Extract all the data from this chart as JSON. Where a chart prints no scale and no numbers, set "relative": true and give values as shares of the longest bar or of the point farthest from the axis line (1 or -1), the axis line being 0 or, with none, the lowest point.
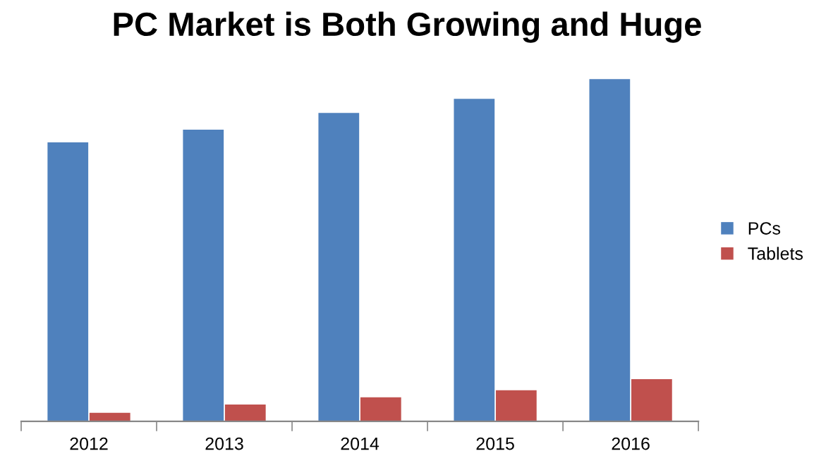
{
  "chart_data": {
    "type": "bar",
    "title": "PC Market is Both Growing and Huge",
    "relative": true,
    "categories": [
      "2012",
      "2013",
      "2014",
      "2015",
      "2016"
    ],
    "series": [
      {
        "name": "PCs",
        "color": "#4f81bd",
        "values": [
          0.815,
          0.852,
          0.901,
          0.942,
          1.0
        ]
      },
      {
        "name": "Tablets",
        "color": "#c0504d",
        "values": [
          0.025,
          0.049,
          0.07,
          0.091,
          0.123
        ]
      }
    ],
    "legend": "right",
    "grid": false
  }
}
